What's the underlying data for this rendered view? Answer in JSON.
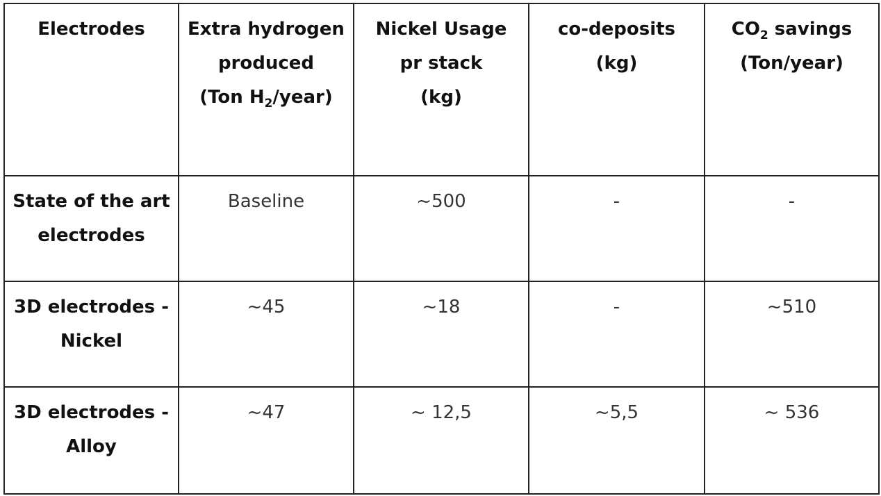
{
  "table": {
    "headers": [
      {
        "lines": [
          "Electrodes"
        ]
      },
      {
        "lines": [
          "Extra hydrogen",
          "produced"
        ],
        "line3_prefix": "(Ton H",
        "line3_sub": "2",
        "line3_suffix": "/year)"
      },
      {
        "lines": [
          "Nickel Usage",
          "pr stack",
          "(kg)"
        ]
      },
      {
        "lines": [
          "co-deposits",
          "(kg)"
        ]
      },
      {
        "line1_prefix": "CO",
        "line1_sub": "2",
        "line1_suffix": " savings",
        "lines": [
          "(Ton/year)"
        ]
      }
    ],
    "rows": [
      {
        "label": [
          "State of the art",
          "electrodes"
        ],
        "values": [
          "Baseline",
          "~500",
          "-",
          "-"
        ]
      },
      {
        "label": [
          "3D electrodes -",
          "Nickel"
        ],
        "values": [
          "~45",
          "~18",
          "-",
          "~510"
        ]
      },
      {
        "label": [
          "3D electrodes -",
          "Alloy"
        ],
        "values": [
          "~47",
          "~ 12,5",
          "~5,5",
          "~ 536"
        ]
      }
    ]
  }
}
